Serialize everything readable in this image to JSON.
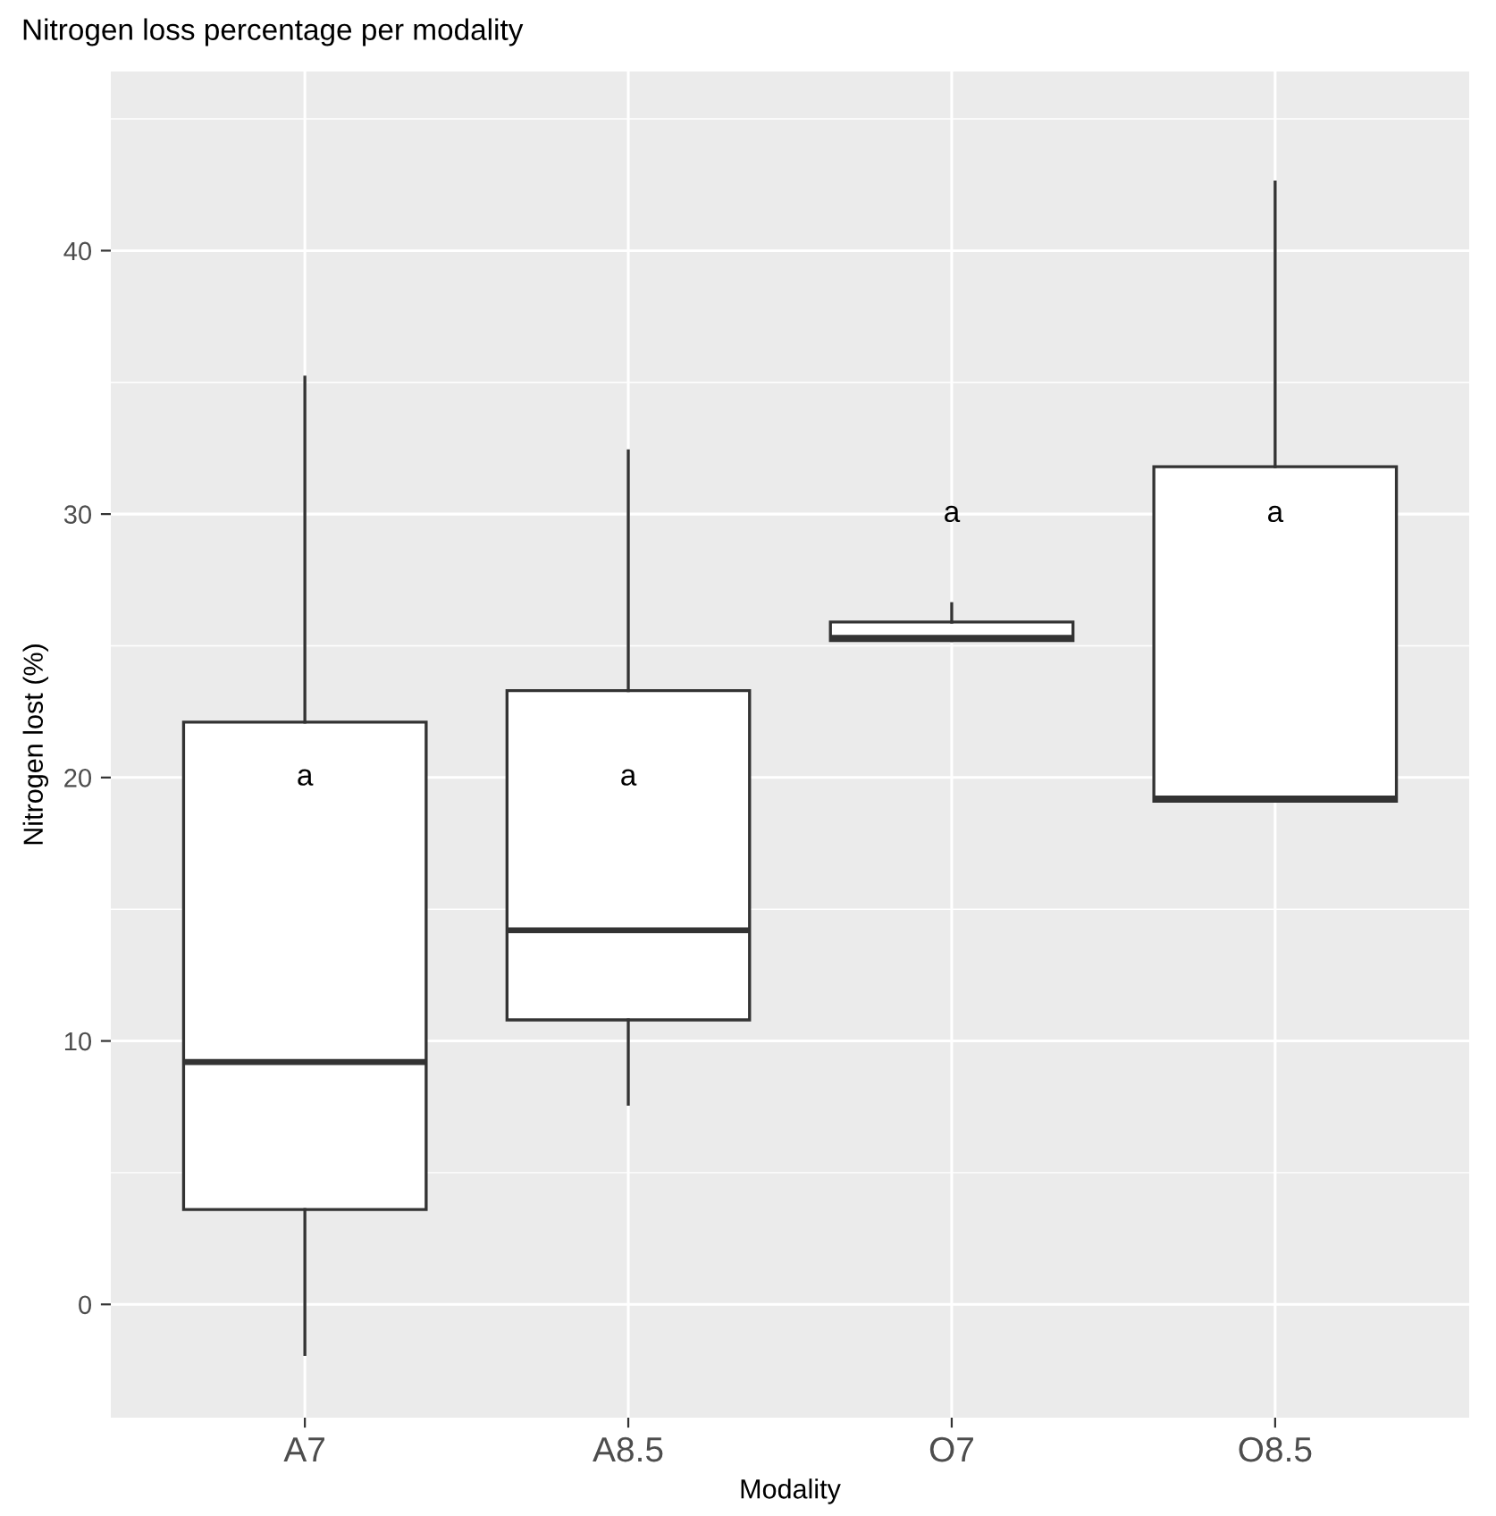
{
  "chart_data": {
    "type": "box",
    "title": "Nitrogen loss percentage per modality",
    "xlabel": "Modality",
    "ylabel": "Nitrogen lost (%)",
    "categories": [
      "A7",
      "A8.5",
      "O7",
      "O8.5"
    ],
    "boxes": [
      {
        "low": -1.9,
        "q1": 3.6,
        "median": 9.2,
        "q3": 22.1,
        "high": 35.2
      },
      {
        "low": 7.6,
        "q1": 10.8,
        "median": 14.2,
        "q3": 23.3,
        "high": 32.4
      },
      {
        "low": 25.2,
        "q1": 25.2,
        "median": 25.3,
        "q3": 25.9,
        "high": 26.6
      },
      {
        "low": 19.1,
        "q1": 19.1,
        "median": 19.2,
        "q3": 31.8,
        "high": 42.6
      }
    ],
    "annotations": [
      "a",
      "a",
      "a",
      "a"
    ],
    "ylim": [
      -4.3,
      46.8
    ],
    "yticks": [
      0,
      10,
      20,
      30,
      40
    ],
    "grid": true
  }
}
